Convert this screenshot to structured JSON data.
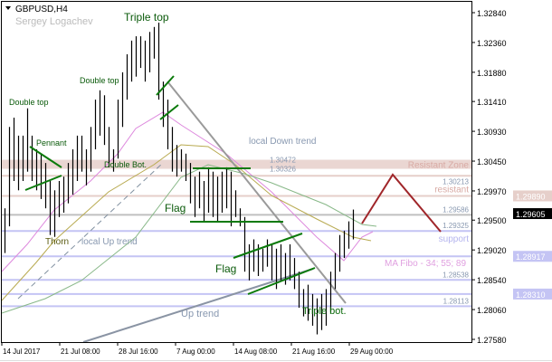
{
  "header": {
    "symbol": "GBPUSD,H4",
    "author": "Sergey Logachev"
  },
  "colors": {
    "bars": "#000000",
    "pattern_lines": "#0a7a0a",
    "trendlines": "#9a9a9a",
    "resistance": "#e6cfca",
    "support": "#c4c4f4",
    "forecast": "#a0262a",
    "label_text": "#0a6a0a"
  },
  "chart_data": {
    "type": "bar",
    "title": "GBPUSD,H4",
    "ylim": [
      1.2758,
      1.3284
    ],
    "y_ticks": [
      "1.32840",
      "1.32360",
      "1.31880",
      "1.31410",
      "1.30930",
      "1.30450",
      "1.29970",
      "1.29500",
      "1.29020",
      "1.28540",
      "1.28060",
      "1.27580"
    ],
    "x_ticks": [
      "14 Jul 2017",
      "21 Jul 08:00",
      "28 Jul 16:00",
      "7 Aug 00:00",
      "14 Aug 08:00",
      "21 Aug 16:00",
      "29 Aug 00:00"
    ],
    "bars_high_low": [
      [
        1.2969,
        1.2897
      ],
      [
        1.31,
        1.294
      ],
      [
        1.3115,
        1.3013
      ],
      [
        1.3086,
        1.2998
      ],
      [
        1.3086,
        1.3013
      ],
      [
        1.313,
        1.3028
      ],
      [
        1.3086,
        1.3013
      ],
      [
        1.3064,
        1.2998
      ],
      [
        1.3057,
        1.2984
      ],
      [
        1.3042,
        1.2969
      ],
      [
        1.3013,
        1.2926
      ],
      [
        1.2998,
        1.2923
      ],
      [
        1.3013,
        1.2955
      ],
      [
        1.302,
        1.2962
      ],
      [
        1.3042,
        1.2977
      ],
      [
        1.3064,
        1.2991
      ],
      [
        1.3086,
        1.3013
      ],
      [
        1.3086,
        1.3028
      ],
      [
        1.3064,
        1.3006
      ],
      [
        1.31,
        1.3028
      ],
      [
        1.3144,
        1.3064
      ],
      [
        1.3159,
        1.3086
      ],
      [
        1.3151,
        1.3071
      ],
      [
        1.31,
        1.3035
      ],
      [
        1.3064,
        1.3028
      ],
      [
        1.3144,
        1.3049
      ],
      [
        1.3188,
        1.31
      ],
      [
        1.3217,
        1.3144
      ],
      [
        1.3239,
        1.3173
      ],
      [
        1.3246,
        1.3181
      ],
      [
        1.3246,
        1.3195
      ],
      [
        1.3239,
        1.3173
      ],
      [
        1.3253,
        1.3188
      ],
      [
        1.3261,
        1.321
      ],
      [
        1.3268,
        1.3144
      ],
      [
        1.3173,
        1.31
      ],
      [
        1.3144,
        1.3064
      ],
      [
        1.31,
        1.3028
      ],
      [
        1.3071,
        1.302
      ],
      [
        1.3064,
        1.3028
      ],
      [
        1.3057,
        1.3013
      ],
      [
        1.3042,
        1.2977
      ],
      [
        1.302,
        1.2955
      ],
      [
        1.3028,
        1.2969
      ],
      [
        1.3013,
        1.2948
      ],
      [
        1.3035,
        1.2962
      ],
      [
        1.3028,
        1.2955
      ],
      [
        1.302,
        1.2948
      ],
      [
        1.3028,
        1.2962
      ],
      [
        1.3035,
        1.2969
      ],
      [
        1.3028,
        1.294
      ],
      [
        1.2998,
        1.2955
      ],
      [
        1.2969,
        1.294
      ],
      [
        1.2955,
        1.2867
      ],
      [
        1.2911,
        1.2853
      ],
      [
        1.2919,
        1.2867
      ],
      [
        1.2911,
        1.286
      ],
      [
        1.2904,
        1.2867
      ],
      [
        1.2919,
        1.2875
      ],
      [
        1.2911,
        1.2853
      ],
      [
        1.2904,
        1.2839
      ],
      [
        1.2911,
        1.2853
      ],
      [
        1.2897,
        1.2846
      ],
      [
        1.2911,
        1.2853
      ],
      [
        1.2889,
        1.2839
      ],
      [
        1.2867,
        1.2809
      ],
      [
        1.2839,
        1.2795
      ],
      [
        1.2846,
        1.2788
      ],
      [
        1.2831,
        1.278
      ],
      [
        1.2824,
        1.2766
      ],
      [
        1.2831,
        1.2773
      ],
      [
        1.2839,
        1.278
      ],
      [
        1.2867,
        1.2802
      ],
      [
        1.2897,
        1.2839
      ],
      [
        1.2926,
        1.2867
      ],
      [
        1.2933,
        1.2889
      ],
      [
        1.2948,
        1.2904
      ],
      [
        1.2967,
        1.2919
      ]
    ],
    "current_price": "1.29605",
    "zone": {
      "label": "Resistant Zone",
      "top": "1.30472",
      "bottom": "1.30326"
    },
    "levels": [
      {
        "price": "1.30213",
        "kind": "resistance",
        "tag": "",
        "boxed": false
      },
      {
        "price": "1.29890",
        "kind": "resistance",
        "tag": "resistant",
        "boxed": true
      },
      {
        "price": "1.29586",
        "kind": "neutral",
        "tag": "",
        "boxed": false
      },
      {
        "price": "1.29325",
        "kind": "support",
        "tag": "support",
        "boxed": false
      },
      {
        "price": "1.28917",
        "kind": "support",
        "tag": "",
        "boxed": true
      },
      {
        "price": "1.28538",
        "kind": "support",
        "tag": "",
        "boxed": false
      },
      {
        "price": "1.28310",
        "kind": "support",
        "tag": "",
        "boxed": true
      },
      {
        "price": "1.28113",
        "kind": "support",
        "tag": "",
        "boxed": false
      }
    ],
    "annotations": {
      "double_top_1": "Double top",
      "double_top_2": "Double top",
      "triple_top": "Triple top",
      "pennant": "Pennant",
      "double_bot": "Double Bot.",
      "thorn": "Thorn",
      "local_up_trend": "local  Up trend",
      "flag_1": "Flag",
      "flag_2": "Flag",
      "local_down_trend": "local Down trend",
      "up_trend": "Up trend",
      "triple_bot": "Triple bot.",
      "ma_fibo": "MA Fibo - 34; 55; 89"
    }
  }
}
